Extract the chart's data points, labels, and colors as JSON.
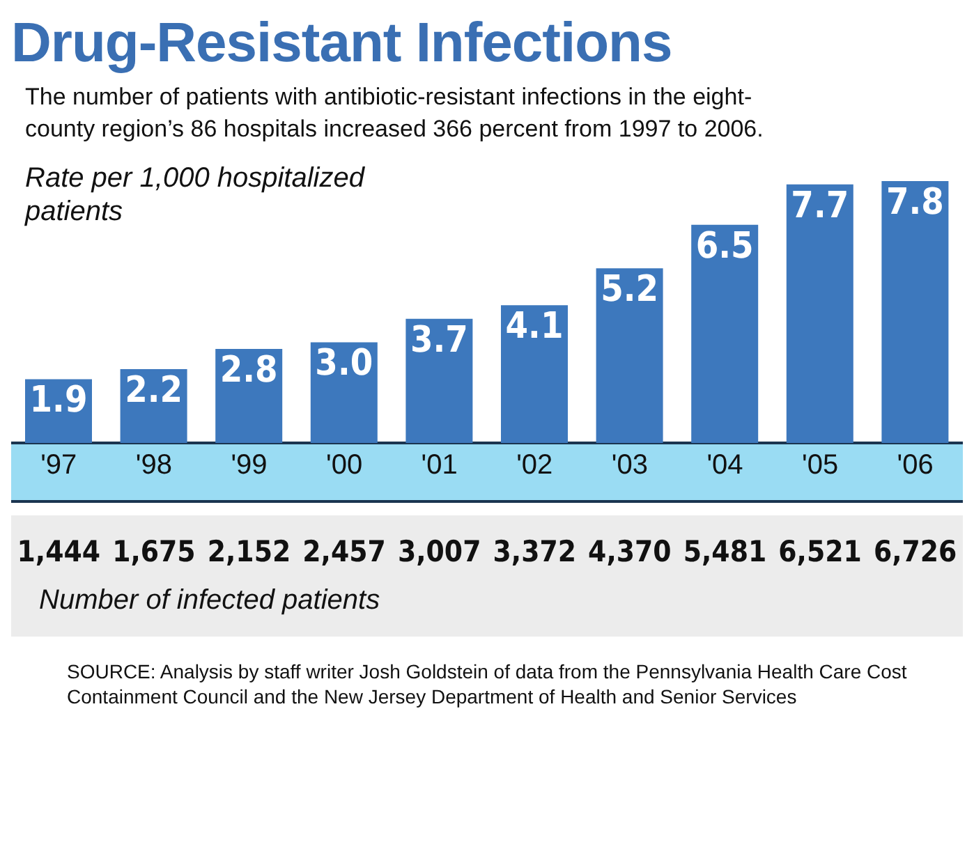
{
  "chart_data": {
    "type": "bar",
    "title": "Drug-Resistant Infections",
    "subtitle": "The number of patients with antibiotic-resistant infections in the eight-county region’s 86 hospitals increased 366 percent from 1997 to 2006.",
    "ylabel": "Rate per 1,000 hospitalized patients",
    "categories": [
      "'97",
      "'98",
      "'99",
      "'00",
      "'01",
      "'02",
      "'03",
      "'04",
      "'05",
      "'06"
    ],
    "values": [
      1.9,
      2.2,
      2.8,
      3.0,
      3.7,
      4.1,
      5.2,
      6.5,
      7.7,
      7.8
    ],
    "value_labels": [
      "1.9",
      "2.2",
      "2.8",
      "3.0",
      "3.7",
      "4.1",
      "5.2",
      "6.5",
      "7.7",
      "7.8"
    ],
    "color": "#3d78bd",
    "annotations": [
      "1,444",
      "1,675",
      "2,152",
      "2,457",
      "3,007",
      "3,372",
      "4,370",
      "5,481",
      "6,521",
      "6,726",
      "Number of infected patients",
      "SOURCE: Analysis by staff writer Josh Goldstein of data from the Pennsylvania Health Care Cost Containment Council and the New Jersey Department of Health and Senior Services"
    ]
  }
}
